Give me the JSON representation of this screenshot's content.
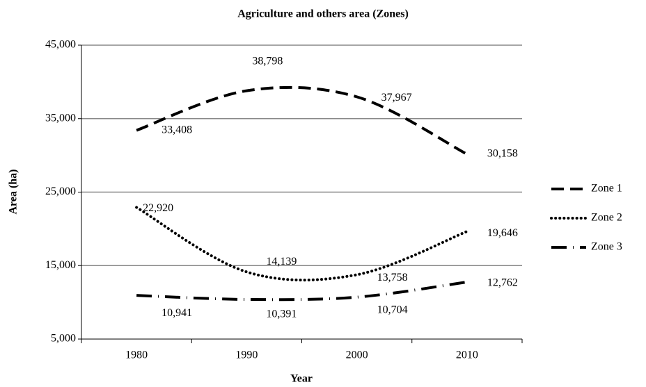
{
  "chart_data": {
    "type": "line",
    "title": "Agriculture and others area (Zones)",
    "x_label": "Year",
    "y_label": "Area (ha)",
    "categories": [
      "1980",
      "1990",
      "2000",
      "2010"
    ],
    "series": [
      {
        "name": "Zone 1",
        "color": "#000000",
        "line_style": "dashed",
        "values": [
          33408,
          38798,
          37967,
          30158
        ],
        "value_labels": [
          "33,408",
          "38,798",
          "37,967",
          "30,158"
        ]
      },
      {
        "name": "Zone 2",
        "color": "#000000",
        "line_style": "dotted",
        "values": [
          22920,
          14139,
          13758,
          19646
        ],
        "value_labels": [
          "22,920",
          "14,139",
          "13,758",
          "19,646"
        ]
      },
      {
        "name": "Zone 3",
        "color": "#000000",
        "line_style": "dashdot",
        "values": [
          10941,
          10391,
          10704,
          12762
        ],
        "value_labels": [
          "10,941",
          "10,391",
          "10,704",
          "12,762"
        ]
      }
    ],
    "ylim": [
      5000,
      45000
    ],
    "yticks": [
      {
        "value": 5000,
        "label": "5,000"
      },
      {
        "value": 15000,
        "label": "15,000"
      },
      {
        "value": 25000,
        "label": "25,000"
      },
      {
        "value": 35000,
        "label": "35,000"
      },
      {
        "value": 45000,
        "label": "45,000"
      }
    ],
    "grid": true,
    "smooth": true,
    "legend": "right"
  }
}
